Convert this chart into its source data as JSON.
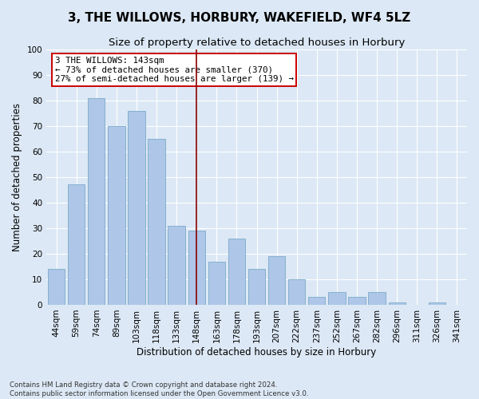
{
  "title": "3, THE WILLOWS, HORBURY, WAKEFIELD, WF4 5LZ",
  "subtitle": "Size of property relative to detached houses in Horbury",
  "xlabel": "Distribution of detached houses by size in Horbury",
  "ylabel": "Number of detached properties",
  "categories": [
    "44sqm",
    "59sqm",
    "74sqm",
    "89sqm",
    "103sqm",
    "118sqm",
    "133sqm",
    "148sqm",
    "163sqm",
    "178sqm",
    "193sqm",
    "207sqm",
    "222sqm",
    "237sqm",
    "252sqm",
    "267sqm",
    "282sqm",
    "296sqm",
    "311sqm",
    "326sqm",
    "341sqm"
  ],
  "values": [
    14,
    47,
    81,
    70,
    76,
    65,
    31,
    29,
    17,
    26,
    14,
    19,
    10,
    3,
    5,
    3,
    5,
    1,
    0,
    1,
    0
  ],
  "bar_color": "#aec6e8",
  "bar_edge_color": "#7aaac8",
  "ylim": [
    0,
    100
  ],
  "yticks": [
    0,
    10,
    20,
    30,
    40,
    50,
    60,
    70,
    80,
    90,
    100
  ],
  "vline_index": 7,
  "vline_color": "#8b0000",
  "annotation_text": "3 THE WILLOWS: 143sqm\n← 73% of detached houses are smaller (370)\n27% of semi-detached houses are larger (139) →",
  "annotation_box_color": "#ffffff",
  "annotation_box_edge": "#cc0000",
  "footnote1": "Contains HM Land Registry data © Crown copyright and database right 2024.",
  "footnote2": "Contains public sector information licensed under the Open Government Licence v3.0.",
  "background_color": "#dce8f5",
  "plot_background": "#dce8f5",
  "grid_color": "#ffffff",
  "title_fontsize": 11,
  "subtitle_fontsize": 9.5,
  "axis_label_fontsize": 8.5,
  "tick_fontsize": 7.5,
  "footnote_fontsize": 6.2
}
